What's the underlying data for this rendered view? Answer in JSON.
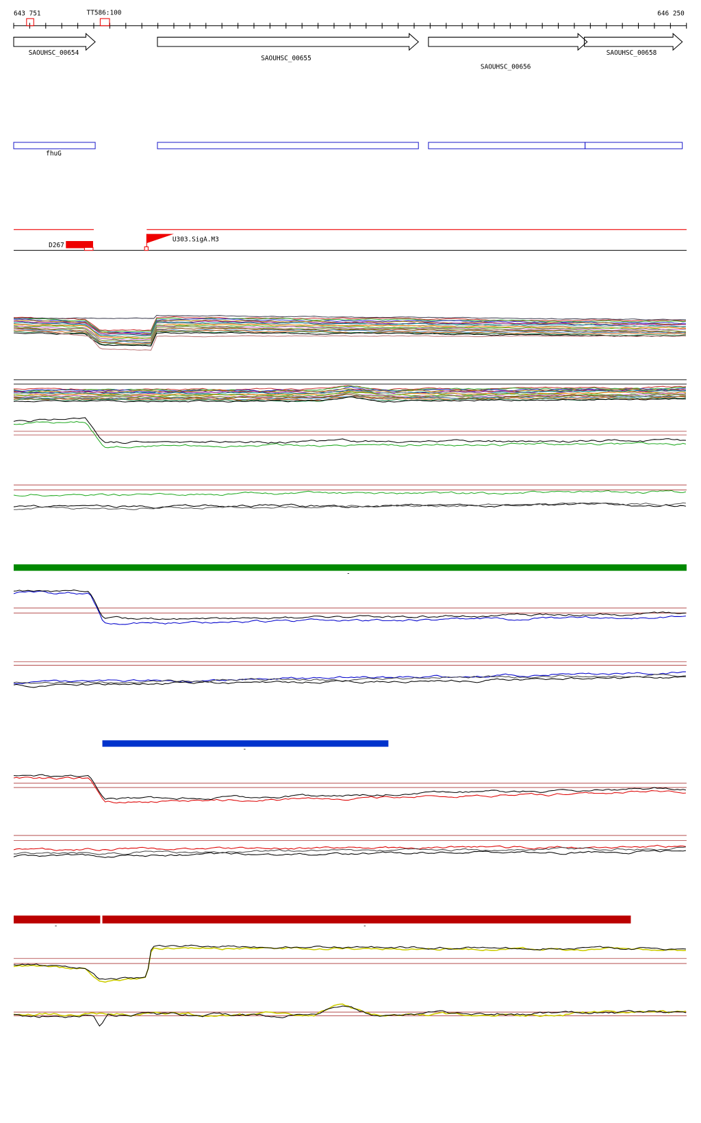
{
  "ruler": {
    "start": "643 751",
    "marker": "TT586:100",
    "end": "646 250"
  },
  "genes": [
    "SAOUHSC_00654",
    "SAOUHSC_00655",
    "SAOUHSC_00656",
    "SAOUHSC_00658"
  ],
  "annotations": [
    "fhuG"
  ],
  "features": [
    "D267",
    "U303.SigA.M3"
  ],
  "bar_labels": [
    "-",
    "-",
    "-",
    "-"
  ]
}
